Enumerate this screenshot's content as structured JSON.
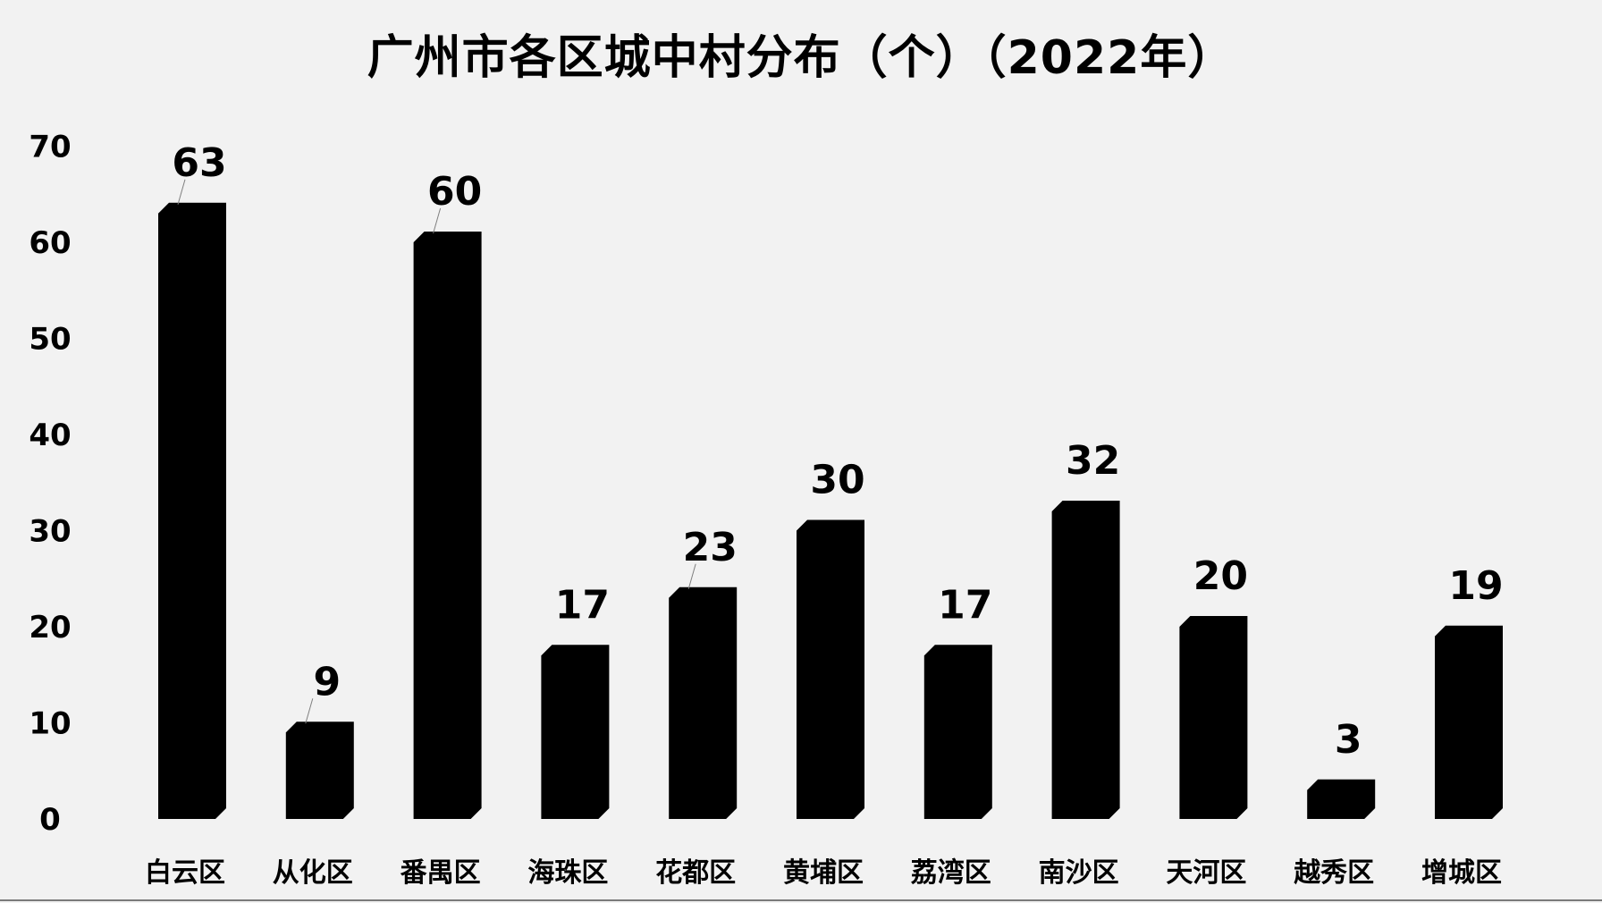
{
  "chart_data": {
    "type": "bar",
    "title": "广州市各区城中村分布（个）（2022年）",
    "categories": [
      "白云区",
      "从化区",
      "番禺区",
      "海珠区",
      "花都区",
      "黄埔区",
      "荔湾区",
      "南沙区",
      "天河区",
      "越秀区",
      "增城区"
    ],
    "values": [
      63,
      9,
      60,
      17,
      23,
      30,
      17,
      32,
      20,
      3,
      19
    ],
    "data_labels": [
      "63",
      "9",
      "60",
      "17",
      "23",
      "30",
      "17",
      "32",
      "20",
      "3",
      "19"
    ],
    "y_ticks": [
      "0",
      "10",
      "20",
      "30",
      "40",
      "50",
      "60",
      "70"
    ],
    "ylim": [
      0,
      70
    ],
    "xlabel": "",
    "ylabel": "",
    "grid": false,
    "legend": "none",
    "bar_color": "#000000",
    "background_color": "#f2f2f2"
  }
}
